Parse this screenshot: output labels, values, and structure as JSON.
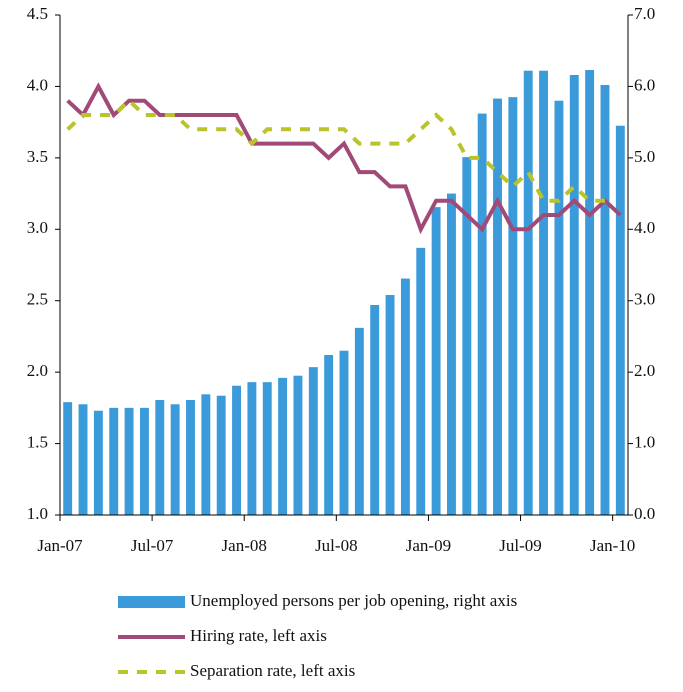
{
  "chart_data": {
    "type": "bar_line",
    "categories": [
      "Jan-07",
      null,
      null,
      null,
      null,
      null,
      "Jul-07",
      null,
      null,
      null,
      null,
      null,
      "Jan-08",
      null,
      null,
      null,
      null,
      null,
      "Jul-08",
      null,
      null,
      null,
      null,
      null,
      "Jan-09",
      null,
      null,
      null,
      null,
      null,
      "Jul-09",
      null,
      null,
      null,
      null,
      null,
      "Jan-10"
    ],
    "series": [
      {
        "name": "Unemployed persons per job opening, right axis",
        "type": "bar",
        "axis": "y2",
        "color": "#3b9ad9",
        "values": [
          1.58,
          1.55,
          1.46,
          1.5,
          1.5,
          1.5,
          1.61,
          1.55,
          1.61,
          1.69,
          1.67,
          1.81,
          1.86,
          1.86,
          1.92,
          1.95,
          2.07,
          2.24,
          2.3,
          2.62,
          2.94,
          3.08,
          3.31,
          3.74,
          4.31,
          4.5,
          5.01,
          5.62,
          5.83,
          5.85,
          6.22,
          6.22,
          5.8,
          6.16,
          6.23,
          6.02,
          5.45
        ]
      },
      {
        "name": "Hiring rate, left axis",
        "type": "line",
        "color": "#a14a78",
        "values": [
          3.9,
          3.8,
          4.0,
          3.8,
          3.9,
          3.9,
          3.8,
          3.8,
          3.8,
          3.8,
          3.8,
          3.8,
          3.6,
          3.6,
          3.6,
          3.6,
          3.6,
          3.5,
          3.6,
          3.4,
          3.4,
          3.3,
          3.3,
          3.0,
          3.2,
          3.2,
          3.1,
          3.0,
          3.2,
          3.0,
          3.0,
          3.1,
          3.1,
          3.2,
          3.1,
          3.2,
          3.1
        ]
      },
      {
        "name": "Separation rate, left axis",
        "type": "dashed",
        "color": "#b8c42a",
        "values": [
          3.7,
          3.8,
          3.8,
          3.8,
          3.9,
          3.8,
          3.8,
          3.8,
          3.7,
          3.7,
          3.7,
          3.7,
          3.6,
          3.7,
          3.7,
          3.7,
          3.7,
          3.7,
          3.7,
          3.6,
          3.6,
          3.6,
          3.6,
          3.7,
          3.8,
          3.7,
          3.5,
          3.5,
          3.4,
          3.3,
          3.4,
          3.2,
          3.2,
          3.3,
          3.2,
          3.2,
          null
        ]
      }
    ],
    "ylim": [
      1.0,
      4.5
    ],
    "yticks": [
      {
        "value": 1,
        "label": "1.0"
      },
      1.5,
      {
        "value": 2,
        "label": "2.0"
      },
      2.5,
      {
        "value": 3,
        "label": "3.0"
      },
      3.5,
      {
        "value": 4,
        "label": "4.0"
      },
      4.5
    ],
    "y2lim": [
      0.0,
      7.0
    ],
    "y2ticks": [
      {
        "value": 0,
        "label": "0.0"
      },
      {
        "value": 1,
        "label": "1.0"
      },
      {
        "value": 2,
        "label": "2.0"
      },
      {
        "value": 3,
        "label": "3.0"
      },
      {
        "value": 4,
        "label": "4.0"
      },
      {
        "value": 5,
        "label": "5.0"
      },
      {
        "value": 6,
        "label": "6.0"
      },
      {
        "value": 7,
        "label": "7.0"
      }
    ],
    "grid": false,
    "legend": "bottom"
  }
}
